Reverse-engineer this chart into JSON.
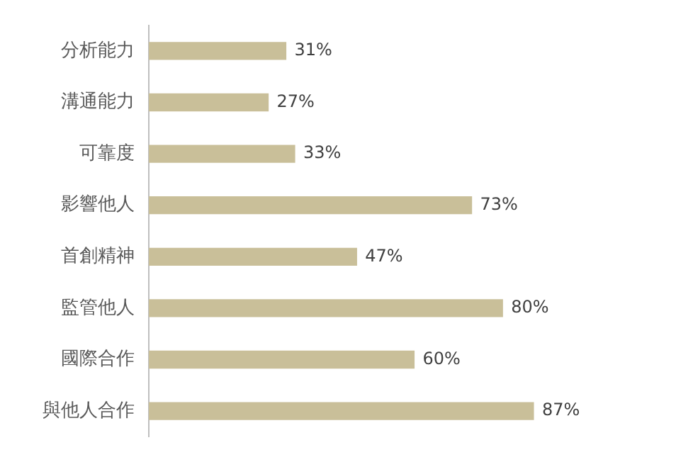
{
  "chart_data": {
    "type": "bar",
    "orientation": "horizontal",
    "categories": [
      "分析能力",
      "溝通能力",
      "可靠度",
      "影響他人",
      "首創精神",
      "監管他人",
      "國際合作",
      "與他人合作"
    ],
    "values": [
      31,
      27,
      33,
      73,
      47,
      80,
      60,
      87
    ],
    "value_labels": [
      "31%",
      "27%",
      "33%",
      "73%",
      "47%",
      "80%",
      "60%",
      "87%"
    ],
    "color": "#c9bf99",
    "grid": false,
    "legend": false,
    "tick_labels": "y"
  }
}
